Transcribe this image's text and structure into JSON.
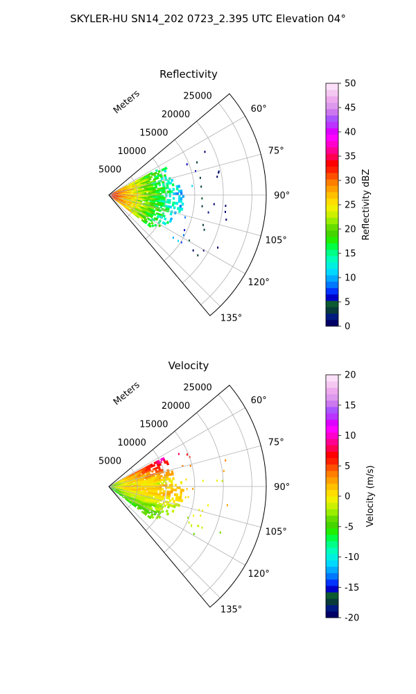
{
  "suptitle": "SKYLER-HU  SN14_202  0723_2.395 UTC Elevation 04°",
  "chart_data": [
    {
      "type": "heatmap",
      "subtype": "polar-sector (PPI)",
      "title": "Reflectivity",
      "range_label": "Meters",
      "range_ticks": [
        "5000",
        "10000",
        "15000",
        "20000",
        "25000"
      ],
      "range_ticks_value": [
        5000,
        10000,
        15000,
        20000,
        25000
      ],
      "range_max": 27500,
      "azimuth_ticks": [
        "60°",
        "75°",
        "90°",
        "105°",
        "120°",
        "135°"
      ],
      "azimuth_ticks_value": [
        60,
        75,
        90,
        105,
        120,
        135
      ],
      "azimuth_range": [
        50,
        140
      ],
      "grid": true,
      "colorbar": {
        "label": "Reflectivity dBZ",
        "min": 0,
        "max": 50,
        "ticks": [
          "0",
          "5",
          "10",
          "15",
          "20",
          "25",
          "30",
          "35",
          "40",
          "45",
          "50"
        ],
        "ticks_value": [
          0,
          5,
          10,
          15,
          20,
          25,
          30,
          35,
          40,
          45,
          50
        ],
        "colors": [
          "#000066",
          "#001a80",
          "#083a3a",
          "#0c5a30",
          "#0000c8",
          "#0033ff",
          "#0077ff",
          "#00aaff",
          "#00d8ff",
          "#00f0e0",
          "#00ffbb",
          "#00ff88",
          "#00ff44",
          "#22ee00",
          "#44d400",
          "#66dd00",
          "#99ee00",
          "#ccf000",
          "#f0f000",
          "#ffdd00",
          "#ffc000",
          "#ffa000",
          "#ff7f00",
          "#ff5000",
          "#ff2000",
          "#ff0000",
          "#ff0050",
          "#ff0090",
          "#ff00cc",
          "#ff00ff",
          "#dd00ff",
          "#bb33ff",
          "#aa55ff",
          "#cc77ee",
          "#dd99ee",
          "#eeaaee",
          "#f5c8f2",
          "#fce0fa"
        ]
      },
      "data_extent": {
        "azimuth": [
          62,
          128
        ],
        "range_max": 13000
      },
      "data_profile": "high values (30-40 dBZ) near radar within ~2000 m; 20-30 dBZ out to ~6000 m; 10-20 dBZ out to ~10000-13000 m; sparse isolated 15-20 dBZ returns beyond"
    },
    {
      "type": "heatmap",
      "subtype": "polar-sector (PPI)",
      "title": "Velocity",
      "range_label": "Meters",
      "range_ticks": [
        "5000",
        "10000",
        "15000",
        "20000",
        "25000"
      ],
      "range_ticks_value": [
        5000,
        10000,
        15000,
        20000,
        25000
      ],
      "range_max": 27500,
      "azimuth_ticks": [
        "60°",
        "75°",
        "90°",
        "105°",
        "120°",
        "135°"
      ],
      "azimuth_ticks_value": [
        60,
        75,
        90,
        105,
        120,
        135
      ],
      "azimuth_range": [
        50,
        140
      ],
      "grid": true,
      "colorbar": {
        "label": "Velocity (m/s)",
        "min": -20,
        "max": 20,
        "ticks": [
          "-20",
          "-15",
          "-10",
          "-5",
          "0",
          "5",
          "10",
          "15",
          "20"
        ],
        "ticks_value": [
          -20,
          -15,
          -10,
          -5,
          0,
          5,
          10,
          15,
          20
        ],
        "colors": [
          "#000066",
          "#001a80",
          "#083a3a",
          "#0c5a30",
          "#0000c8",
          "#0033ff",
          "#0077ff",
          "#00aaff",
          "#00d8ff",
          "#00f0e0",
          "#00ffbb",
          "#00ff88",
          "#00ff44",
          "#22ee00",
          "#44d400",
          "#66dd00",
          "#99ee00",
          "#ccf000",
          "#f0f000",
          "#ffdd00",
          "#ffc000",
          "#ffa000",
          "#ff7f00",
          "#ff5000",
          "#ff2000",
          "#ff0000",
          "#ff0050",
          "#ff0090",
          "#ff00cc",
          "#ff00ff",
          "#dd00ff",
          "#bb33ff",
          "#aa55ff",
          "#cc77ee",
          "#dd99ee",
          "#eeaaee",
          "#f5c8f2",
          "#fce0fa"
        ]
      },
      "data_extent": {
        "azimuth": [
          62,
          128
        ],
        "range_max": 13000
      },
      "data_profile": "northern azimuths (62-85°) outbound 5-10 m/s at 6000-12000 m; central azimuths ~0 to +3 m/s; southern azimuths (100-128°) and near radar -2 to -5 m/s"
    }
  ]
}
